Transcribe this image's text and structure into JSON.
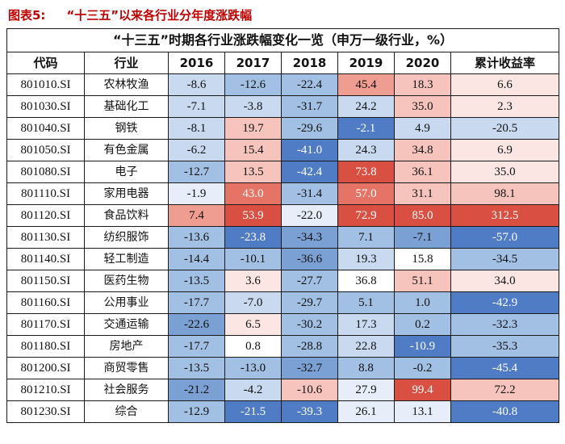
{
  "chart_data": {
    "type": "table",
    "figure_label": "图表5:",
    "figure_title": "“十三五”以来各行业分年度涨跌幅",
    "table_title": "“十三五”时期各行业涨跌幅变化一览（申万一级行业，%）",
    "columns": [
      "代码",
      "行业",
      "2016",
      "2017",
      "2018",
      "2019",
      "2020",
      "累计收益率"
    ],
    "rows": [
      {
        "code": "801010.SI",
        "industry": "农林牧渔",
        "values": [
          -8.6,
          -12.6,
          -22.4,
          45.4,
          18.3,
          6.6
        ],
        "shades": [
          "b2",
          "b3",
          "b3",
          "r3",
          "r2",
          "r1"
        ]
      },
      {
        "code": "801030.SI",
        "industry": "基础化工",
        "values": [
          -7.1,
          -3.8,
          -31.7,
          24.2,
          35.0,
          2.3
        ],
        "shades": [
          "b2",
          "b2",
          "b3",
          "b2",
          "r2",
          "r1"
        ]
      },
      {
        "code": "801040.SI",
        "industry": "钢铁",
        "values": [
          -8.1,
          19.7,
          -29.6,
          -2.1,
          4.9,
          -20.5
        ],
        "shades": [
          "b2",
          "r2",
          "b3",
          "b5",
          "b2",
          "b2"
        ]
      },
      {
        "code": "801050.SI",
        "industry": "有色金属",
        "values": [
          -6.2,
          15.4,
          -41.0,
          24.3,
          34.8,
          6.9
        ],
        "shades": [
          "b2",
          "r2",
          "b5",
          "b2",
          "r2",
          "r1"
        ]
      },
      {
        "code": "801080.SI",
        "industry": "电子",
        "values": [
          -12.7,
          13.5,
          -42.4,
          73.8,
          36.1,
          35.0
        ],
        "shades": [
          "b3",
          "r2",
          "b5",
          "r5",
          "r2",
          "r1"
        ]
      },
      {
        "code": "801110.SI",
        "industry": "家用电器",
        "values": [
          -1.9,
          43.0,
          -31.4,
          57.0,
          31.1,
          98.1
        ],
        "shades": [
          "b1",
          "r4",
          "b3",
          "r4",
          "r2",
          "r2"
        ]
      },
      {
        "code": "801120.SI",
        "industry": "食品饮料",
        "values": [
          7.4,
          53.9,
          -22.0,
          72.9,
          85.0,
          312.5
        ],
        "shades": [
          "r3",
          "r5",
          "b1",
          "r5",
          "r5",
          "r5"
        ]
      },
      {
        "code": "801130.SI",
        "industry": "纺织服饰",
        "values": [
          -13.6,
          -23.8,
          -34.3,
          7.1,
          -7.1,
          -57.0
        ],
        "shades": [
          "b3",
          "b5",
          "b4",
          "b3",
          "b4",
          "b5"
        ]
      },
      {
        "code": "801140.SI",
        "industry": "轻工制造",
        "values": [
          -14.4,
          -10.1,
          -36.6,
          19.3,
          15.8,
          -34.5
        ],
        "shades": [
          "b3",
          "b3",
          "b4",
          "b2",
          "w",
          "b3"
        ]
      },
      {
        "code": "801150.SI",
        "industry": "医药生物",
        "values": [
          -13.5,
          3.6,
          -27.7,
          36.8,
          51.1,
          34.0
        ],
        "shades": [
          "b3",
          "r1",
          "b3",
          "w",
          "r2",
          "r1"
        ]
      },
      {
        "code": "801160.SI",
        "industry": "公用事业",
        "values": [
          -17.7,
          -7.0,
          -29.7,
          5.1,
          1.0,
          -42.9
        ],
        "shades": [
          "b3",
          "b2",
          "b3",
          "b3",
          "b3",
          "b5"
        ]
      },
      {
        "code": "801170.SI",
        "industry": "交通运输",
        "values": [
          -22.6,
          6.5,
          -30.2,
          17.3,
          0.2,
          -32.3
        ],
        "shades": [
          "b4",
          "r1",
          "b3",
          "b2",
          "b3",
          "b3"
        ]
      },
      {
        "code": "801180.SI",
        "industry": "房地产",
        "values": [
          -17.7,
          0.8,
          -28.8,
          22.8,
          -10.9,
          -35.3
        ],
        "shades": [
          "b3",
          "w",
          "b3",
          "b2",
          "b5",
          "b3"
        ]
      },
      {
        "code": "801200.SI",
        "industry": "商贸零售",
        "values": [
          -13.5,
          -13.0,
          -32.7,
          8.8,
          -0.2,
          -45.4
        ],
        "shades": [
          "b3",
          "b3",
          "b4",
          "b3",
          "b3",
          "b5"
        ]
      },
      {
        "code": "801210.SI",
        "industry": "社会服务",
        "values": [
          -21.2,
          -4.2,
          -10.6,
          27.9,
          99.4,
          72.2
        ],
        "shades": [
          "b4",
          "b2",
          "r2",
          "b1",
          "r5",
          "r2"
        ]
      },
      {
        "code": "801230.SI",
        "industry": "综合",
        "values": [
          -12.9,
          -21.5,
          -39.3,
          26.1,
          13.1,
          -40.8
        ],
        "shades": [
          "b3",
          "b5",
          "b5",
          "b1",
          "b1",
          "b5"
        ]
      }
    ]
  },
  "colors": {
    "figure_red": "#c00000",
    "border": "#1a1a1a",
    "w": "#ffffff",
    "b1": "#e7eef9",
    "b2": "#c8d9f0",
    "b3": "#a2bfe4",
    "b4": "#7ba0d4",
    "b5": "#4f7cc4",
    "r1": "#fbe6e3",
    "r2": "#f6c4bd",
    "r3": "#ef9c91",
    "r4": "#e67466",
    "r5": "#d94f42"
  }
}
